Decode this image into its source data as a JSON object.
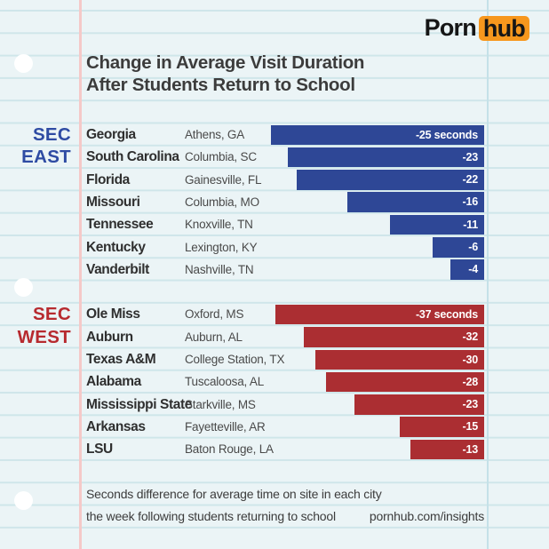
{
  "logo": {
    "part1": "Porn",
    "part2": "hub"
  },
  "title": {
    "line1": "Change in Average Visit Duration",
    "line2": "After Students Return to School"
  },
  "footer": {
    "note_line1": "Seconds difference for average time on site in each city",
    "note_line2": "the week following students returning to school",
    "site": "pornhub.com/insights"
  },
  "colors": {
    "paper_bg": "#ebf4f6",
    "ruled_line": "#cfe6ea",
    "margin_line_pink": "#f5c9c8",
    "margin_line_teal": "#c5e1e8",
    "text_dark": "#3c3c3c",
    "east_bar": "#2e4796",
    "east_label": "#2e4ba3",
    "west_bar": "#ab2e32",
    "west_label": "#b72a2f",
    "bar_value_text": "#ffffff",
    "logo_orange": "#f7971d"
  },
  "chart_data": {
    "type": "bar",
    "orientation": "horizontal",
    "unit": "seconds",
    "title": "Change in Average Visit Duration After Students Return to School",
    "value_note": "negative values = decrease in average visit duration, bars right-aligned, length proportional to seconds within each section",
    "legend_position": "none",
    "grid": "ruled notebook lines",
    "sections": [
      {
        "label_line1": "SEC",
        "label_line2": "EAST",
        "color": "#2e4796",
        "label_color": "#2e4ba3",
        "rows": [
          {
            "school": "Georgia",
            "city": "Athens, GA",
            "value": -25,
            "value_label": "-25 seconds"
          },
          {
            "school": "South Carolina",
            "city": "Columbia, SC",
            "value": -23,
            "value_label": "-23"
          },
          {
            "school": "Florida",
            "city": "Gainesville, FL",
            "value": -22,
            "value_label": "-22"
          },
          {
            "school": "Missouri",
            "city": "Columbia, MO",
            "value": -16,
            "value_label": "-16"
          },
          {
            "school": "Tennessee",
            "city": "Knoxville, TN",
            "value": -11,
            "value_label": "-11"
          },
          {
            "school": "Kentucky",
            "city": "Lexington, KY",
            "value": -6,
            "value_label": "-6"
          },
          {
            "school": "Vanderbilt",
            "city": "Nashville, TN",
            "value": -4,
            "value_label": "-4"
          }
        ]
      },
      {
        "label_line1": "SEC",
        "label_line2": "WEST",
        "color": "#ab2e32",
        "label_color": "#b72a2f",
        "rows": [
          {
            "school": "Ole Miss",
            "city": "Oxford, MS",
            "value": -37,
            "value_label": "-37 seconds"
          },
          {
            "school": "Auburn",
            "city": "Auburn, AL",
            "value": -32,
            "value_label": "-32"
          },
          {
            "school": "Texas A&M",
            "city": "College Station, TX",
            "value": -30,
            "value_label": "-30"
          },
          {
            "school": "Alabama",
            "city": "Tuscaloosa, AL",
            "value": -28,
            "value_label": "-28"
          },
          {
            "school": "Mississippi State",
            "city": "Starkville, MS",
            "value": -23,
            "value_label": "-23"
          },
          {
            "school": "Arkansas",
            "city": "Fayetteville, AR",
            "value": -15,
            "value_label": "-15"
          },
          {
            "school": "LSU",
            "city": "Baton Rouge, LA",
            "value": -13,
            "value_label": "-13"
          }
        ]
      }
    ]
  }
}
